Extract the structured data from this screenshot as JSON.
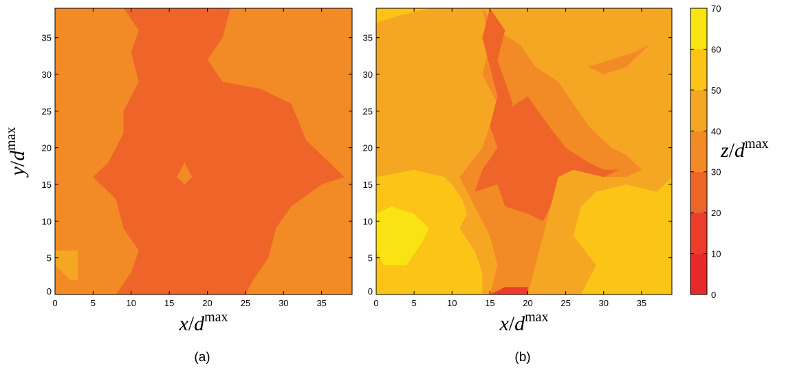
{
  "chart_data": [
    {
      "type": "heatmap",
      "panel_label": "(a)",
      "xlabel": {
        "var": "x",
        "denom": "d",
        "sup": "max"
      },
      "ylabel": {
        "var": "y",
        "denom": "d",
        "sup": "max"
      },
      "xlim": [
        0,
        39
      ],
      "ylim": [
        0,
        39
      ],
      "xticks": [
        0,
        5,
        10,
        15,
        20,
        25,
        30,
        35
      ],
      "yticks": [
        0,
        5,
        10,
        15,
        20,
        25,
        30,
        35
      ],
      "regions": [
        {
          "level": 40,
          "points": [
            [
              0,
              4
            ],
            [
              2,
              2
            ],
            [
              3,
              2
            ],
            [
              3,
              6
            ],
            [
              0,
              6
            ]
          ]
        },
        {
          "level": 30,
          "points": [
            [
              12,
              37
            ],
            [
              7,
              37
            ],
            [
              2,
              35
            ],
            [
              6,
              31
            ],
            [
              6,
              25
            ],
            [
              8,
              22
            ],
            [
              8,
              18
            ],
            [
              5,
              16
            ],
            [
              2,
              15
            ],
            [
              4,
              13
            ],
            [
              8,
              12
            ],
            [
              9,
              9
            ],
            [
              10,
              6
            ],
            [
              8,
              2
            ],
            [
              7,
              0
            ],
            [
              10,
              0
            ],
            [
              10,
              35
            ]
          ]
        },
        {
          "level": 30,
          "points": [
            [
              28,
              39
            ],
            [
              26,
              37
            ],
            [
              24,
              34
            ],
            [
              28,
              32
            ],
            [
              30,
              31
            ],
            [
              31,
              25
            ],
            [
              33,
              22
            ],
            [
              36,
              20
            ],
            [
              39,
              18
            ],
            [
              39,
              22
            ],
            [
              36,
              24
            ],
            [
              35,
              27
            ],
            [
              35,
              31
            ],
            [
              38,
              35
            ],
            [
              39,
              37
            ],
            [
              39,
              39
            ]
          ]
        },
        {
          "level": 30,
          "points": [
            [
              39,
              16
            ],
            [
              35,
              15
            ],
            [
              30,
              12
            ],
            [
              28,
              9
            ],
            [
              27,
              5
            ],
            [
              25,
              2
            ],
            [
              24,
              0
            ],
            [
              39,
              0
            ]
          ]
        },
        {
          "level": 20,
          "points": [
            [
              9,
              39
            ],
            [
              23,
              39
            ],
            [
              22,
              35
            ],
            [
              20,
              32
            ],
            [
              22,
              29
            ],
            [
              27,
              28
            ],
            [
              31,
              26
            ],
            [
              33,
              21
            ],
            [
              37,
              17
            ],
            [
              38,
              16
            ],
            [
              35,
              15
            ],
            [
              31,
              12
            ],
            [
              29,
              9
            ],
            [
              28,
              5
            ],
            [
              26,
              2
            ],
            [
              25,
              0
            ],
            [
              8,
              0
            ],
            [
              10,
              3
            ],
            [
              11,
              6
            ],
            [
              9,
              9
            ],
            [
              8,
              13
            ],
            [
              5,
              16
            ],
            [
              7,
              18
            ],
            [
              9,
              22
            ],
            [
              9,
              25
            ],
            [
              11,
              29
            ],
            [
              10,
              33
            ],
            [
              11,
              36
            ]
          ]
        },
        {
          "level": 30,
          "points": [
            [
              16,
              16
            ],
            [
              17,
              18
            ],
            [
              18,
              16
            ],
            [
              17,
              15
            ]
          ]
        }
      ]
    },
    {
      "type": "heatmap",
      "panel_label": "(b)",
      "xlabel": {
        "var": "x",
        "denom": "d",
        "sup": "max"
      },
      "ylabel": null,
      "xlim": [
        0,
        39
      ],
      "ylim": [
        0,
        39
      ],
      "xticks": [
        0,
        5,
        10,
        15,
        20,
        25,
        30,
        35
      ],
      "yticks": [
        0,
        5,
        10,
        15,
        20,
        25,
        30,
        35
      ],
      "regions": [
        {
          "level": 50,
          "points": [
            [
              0,
              16
            ],
            [
              5,
              17
            ],
            [
              9,
              16
            ],
            [
              11,
              14
            ],
            [
              12,
              11
            ],
            [
              11,
              9
            ],
            [
              13,
              6
            ],
            [
              14,
              3
            ],
            [
              14,
              0
            ],
            [
              0,
              0
            ]
          ]
        },
        {
          "level": 50,
          "points": [
            [
              27,
              0
            ],
            [
              29,
              4
            ],
            [
              26,
              8
            ],
            [
              27,
              12
            ],
            [
              29,
              14
            ],
            [
              33,
              15
            ],
            [
              37,
              14
            ],
            [
              39,
              16
            ],
            [
              39,
              0
            ]
          ]
        },
        {
          "level": 50,
          "points": [
            [
              0,
              39
            ],
            [
              0,
              37
            ],
            [
              3,
              38
            ],
            [
              7,
              39
            ]
          ]
        },
        {
          "level": 60,
          "points": [
            [
              0,
              11
            ],
            [
              2,
              12
            ],
            [
              5,
              11
            ],
            [
              7,
              9
            ],
            [
              6,
              7
            ],
            [
              4,
              4
            ],
            [
              1,
              4
            ],
            [
              0,
              6
            ]
          ]
        },
        {
          "level": 40,
          "points": [
            [
              15,
              39
            ],
            [
              13,
              35
            ],
            [
              11,
              32
            ],
            [
              14,
              28
            ],
            [
              13,
              22
            ],
            [
              11,
              18
            ],
            [
              10,
              15
            ],
            [
              12,
              12
            ],
            [
              14,
              8
            ],
            [
              15,
              4
            ],
            [
              14,
              0
            ],
            [
              20,
              0
            ],
            [
              22,
              5
            ],
            [
              24,
              9
            ],
            [
              25,
              13
            ],
            [
              26,
              15
            ],
            [
              24,
              19
            ],
            [
              23,
              23
            ],
            [
              25,
              27
            ],
            [
              28,
              30
            ],
            [
              30,
              33
            ],
            [
              32,
              35
            ],
            [
              34,
              39
            ]
          ]
        },
        {
          "level": 30,
          "points": [
            [
              14,
              39
            ],
            [
              16,
              36
            ],
            [
              19,
              34
            ],
            [
              21,
              31
            ],
            [
              24,
              29
            ],
            [
              26,
              26
            ],
            [
              28,
              23
            ],
            [
              31,
              20
            ],
            [
              33,
              19
            ],
            [
              35,
              17
            ],
            [
              33,
              16
            ],
            [
              30,
              16
            ],
            [
              28,
              17
            ],
            [
              26,
              18
            ],
            [
              24,
              16
            ],
            [
              23,
              12
            ],
            [
              22,
              8
            ],
            [
              21,
              4
            ],
            [
              20,
              0
            ],
            [
              15,
              0
            ],
            [
              16,
              4
            ],
            [
              15,
              8
            ],
            [
              13,
              12
            ],
            [
              12,
              14
            ],
            [
              11,
              16
            ],
            [
              14,
              20
            ],
            [
              15,
              23
            ],
            [
              16,
              26
            ],
            [
              14,
              30
            ],
            [
              15,
              34
            ]
          ]
        },
        {
          "level": 30,
          "points": [
            [
              28,
              31
            ],
            [
              31,
              32
            ],
            [
              34,
              33
            ],
            [
              36,
              34
            ],
            [
              33,
              31
            ],
            [
              30,
              30
            ]
          ]
        },
        {
          "level": 20,
          "points": [
            [
              15,
              39
            ],
            [
              17,
              36
            ],
            [
              16,
              32
            ],
            [
              17,
              29
            ],
            [
              18,
              26
            ],
            [
              17,
              23
            ],
            [
              19,
              20
            ],
            [
              18,
              17
            ],
            [
              16,
              15
            ],
            [
              13,
              14
            ],
            [
              14,
              17
            ],
            [
              16,
              20
            ],
            [
              15,
              23
            ],
            [
              16,
              27
            ],
            [
              15,
              31
            ],
            [
              14,
              35
            ]
          ]
        },
        {
          "level": 20,
          "points": [
            [
              17,
              25
            ],
            [
              20,
              27
            ],
            [
              22,
              24
            ],
            [
              25,
              20
            ],
            [
              28,
              18
            ],
            [
              30,
              17
            ],
            [
              32,
              17
            ],
            [
              30,
              16
            ],
            [
              26,
              17
            ],
            [
              24,
              16
            ],
            [
              23,
              12
            ],
            [
              22,
              10
            ],
            [
              20,
              11
            ],
            [
              17,
              12
            ],
            [
              16,
              15
            ],
            [
              17,
              19
            ],
            [
              16,
              22
            ]
          ]
        },
        {
          "level": 10,
          "points": [
            [
              15,
              0
            ],
            [
              17,
              1
            ],
            [
              20,
              1
            ],
            [
              20,
              0
            ]
          ]
        }
      ]
    }
  ],
  "colorbar": {
    "label": {
      "var": "z",
      "denom": "d",
      "sup": "max"
    },
    "ticks": [
      0,
      10,
      20,
      30,
      40,
      50,
      60,
      70
    ],
    "levels": [
      {
        "from": 0,
        "to": 10,
        "color": "#e8292b"
      },
      {
        "from": 10,
        "to": 20,
        "color": "#ec3d2a"
      },
      {
        "from": 20,
        "to": 30,
        "color": "#ef6428"
      },
      {
        "from": 30,
        "to": 40,
        "color": "#f28a26"
      },
      {
        "from": 40,
        "to": 50,
        "color": "#f5a623"
      },
      {
        "from": 50,
        "to": 60,
        "color": "#fbc416"
      },
      {
        "from": 60,
        "to": 70,
        "color": "#f9e312"
      }
    ]
  },
  "background_levels": [
    30,
    40
  ]
}
